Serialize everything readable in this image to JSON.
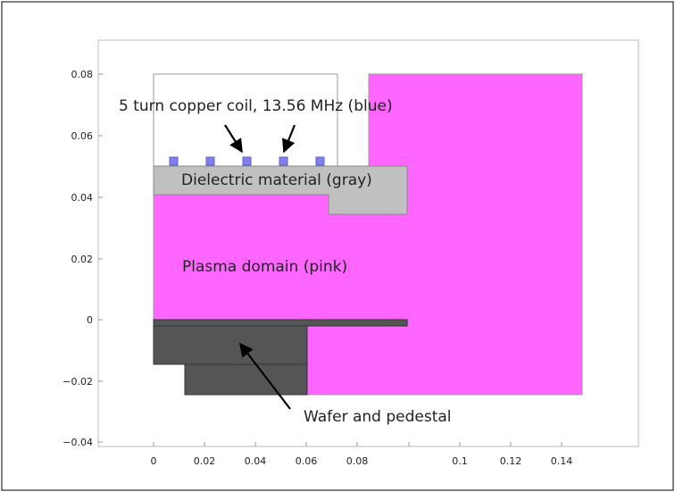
{
  "figure": {
    "x_ticks": [
      "0",
      "0.02",
      "0.04",
      "0.06",
      "0.08",
      "0.1",
      "0.12",
      "0.14"
    ],
    "y_ticks": [
      "0.08",
      "0.06",
      "0.04",
      "0.02",
      "0",
      "−0.02",
      "−0.04"
    ],
    "annotations": {
      "coil": "5 turn copper coil, 13.56 MHz (blue)",
      "dielectric": "Dielectric material (gray)",
      "plasma": "Plasma domain (pink)",
      "wafer": "Wafer and pedestal"
    },
    "colors": {
      "plasma": "#ff66ff",
      "dielectric": "#c0c0c0",
      "coil": "#8080ee",
      "pedestal": "#555555",
      "outline": "#888888"
    }
  }
}
